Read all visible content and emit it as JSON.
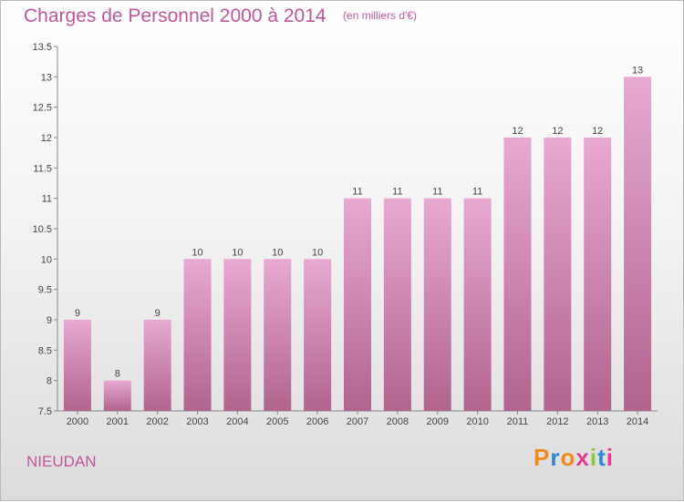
{
  "header": {
    "title": "Charges de Personnel 2000 à 2014",
    "subtitle": "(en milliers d'€)"
  },
  "footer": {
    "commune": "NIEUDAN",
    "logo_text": "Proxiti",
    "logo_colors": [
      "#f08a1c",
      "#2e86d6",
      "#f08a1c",
      "#e23c8e",
      "#8dc63f",
      "#2e86d6",
      "#e23c8e"
    ]
  },
  "chart_data": {
    "type": "bar",
    "categories": [
      "2000",
      "2001",
      "2002",
      "2003",
      "2004",
      "2005",
      "2006",
      "2007",
      "2008",
      "2009",
      "2010",
      "2011",
      "2012",
      "2013",
      "2014"
    ],
    "values": [
      9,
      8,
      9,
      10,
      10,
      10,
      10,
      11,
      11,
      11,
      11,
      12,
      12,
      12,
      13
    ],
    "data_labels": [
      "9",
      "8",
      "9",
      "10",
      "10",
      "10",
      "10",
      "11",
      "11",
      "11",
      "11",
      "12",
      "12",
      "12",
      "13"
    ],
    "ylim": [
      7.5,
      13.5
    ],
    "yticks": [
      7.5,
      8,
      8.5,
      9,
      9.5,
      10,
      10.5,
      11,
      11.5,
      12,
      12.5,
      13,
      13.5
    ],
    "ytick_labels": [
      "7.5",
      "8",
      "8.5",
      "9",
      "9.5",
      "10",
      "10.5",
      "11",
      "11.5",
      "12",
      "12.5",
      "13",
      "13.5"
    ],
    "bar_color_top": "#e8a9d2",
    "bar_color_bottom": "#b0648e",
    "grid": false
  }
}
